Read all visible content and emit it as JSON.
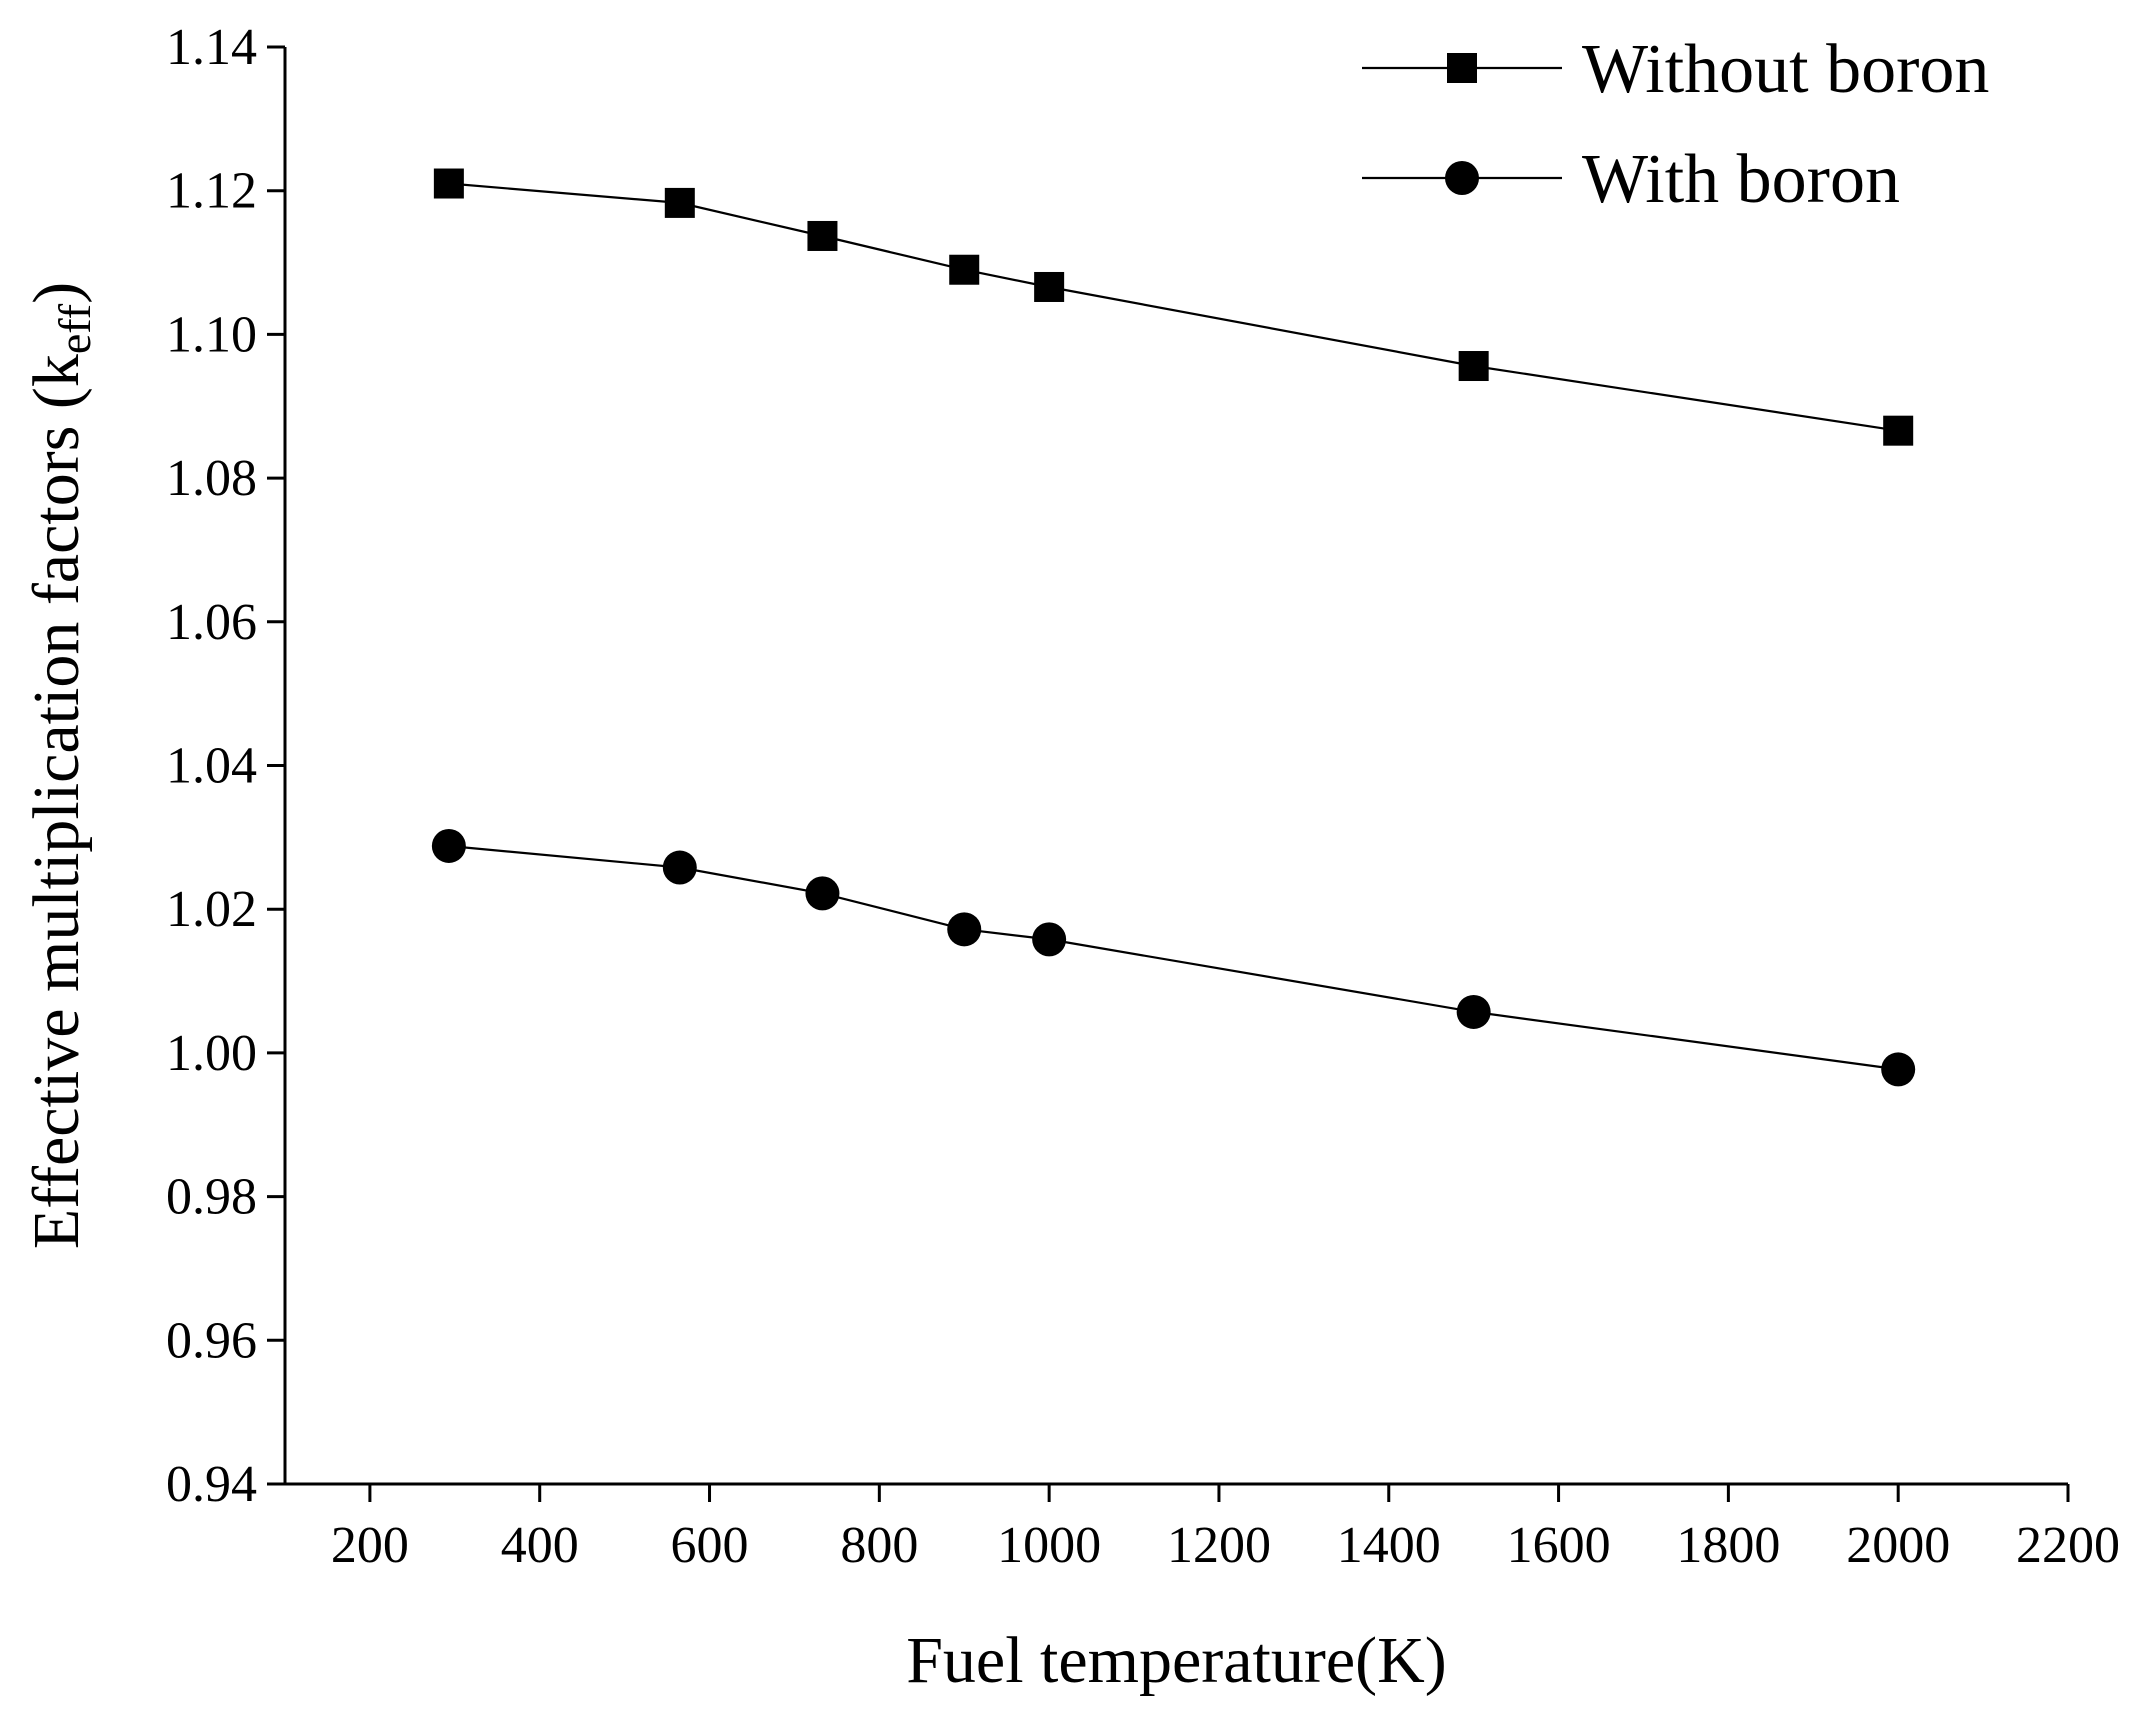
{
  "chart_data": {
    "type": "line",
    "title": "",
    "xlabel": "Fuel temperature(K)",
    "ylabel": {
      "prefix": "Effective multiplication factors (k",
      "subscript": "eff",
      "suffix": ")"
    },
    "xlim": [
      100,
      2200
    ],
    "ylim": [
      0.94,
      1.14
    ],
    "x_ticks": [
      200,
      400,
      600,
      800,
      1000,
      1200,
      1400,
      1600,
      1800,
      2000,
      2200
    ],
    "x_tick_labels": [
      "200",
      "400",
      "600",
      "800",
      "1000",
      "1200",
      "1400",
      "1600",
      "1800",
      "2000",
      "2200"
    ],
    "y_ticks": [
      0.94,
      0.96,
      0.98,
      1.0,
      1.02,
      1.04,
      1.06,
      1.08,
      1.1,
      1.12,
      1.14
    ],
    "y_tick_labels": [
      "0.94",
      "0.96",
      "0.98",
      "1.00",
      "1.02",
      "1.04",
      "1.06",
      "1.08",
      "1.10",
      "1.12",
      "1.14"
    ],
    "legend_position": "top-right",
    "grid": false,
    "series": [
      {
        "name": "Without boron",
        "marker": "square",
        "x": [
          293,
          565,
          733,
          900,
          1000,
          1500,
          2000
        ],
        "values": [
          1.121,
          1.1183,
          1.1137,
          1.109,
          1.1066,
          1.0956,
          1.0866
        ]
      },
      {
        "name": "With boron",
        "marker": "circle",
        "x": [
          293,
          565,
          733,
          900,
          1000,
          1500,
          2000
        ],
        "values": [
          1.0288,
          1.0258,
          1.0222,
          1.0172,
          1.0158,
          1.0057,
          0.9977
        ]
      }
    ],
    "color": "#000000"
  }
}
